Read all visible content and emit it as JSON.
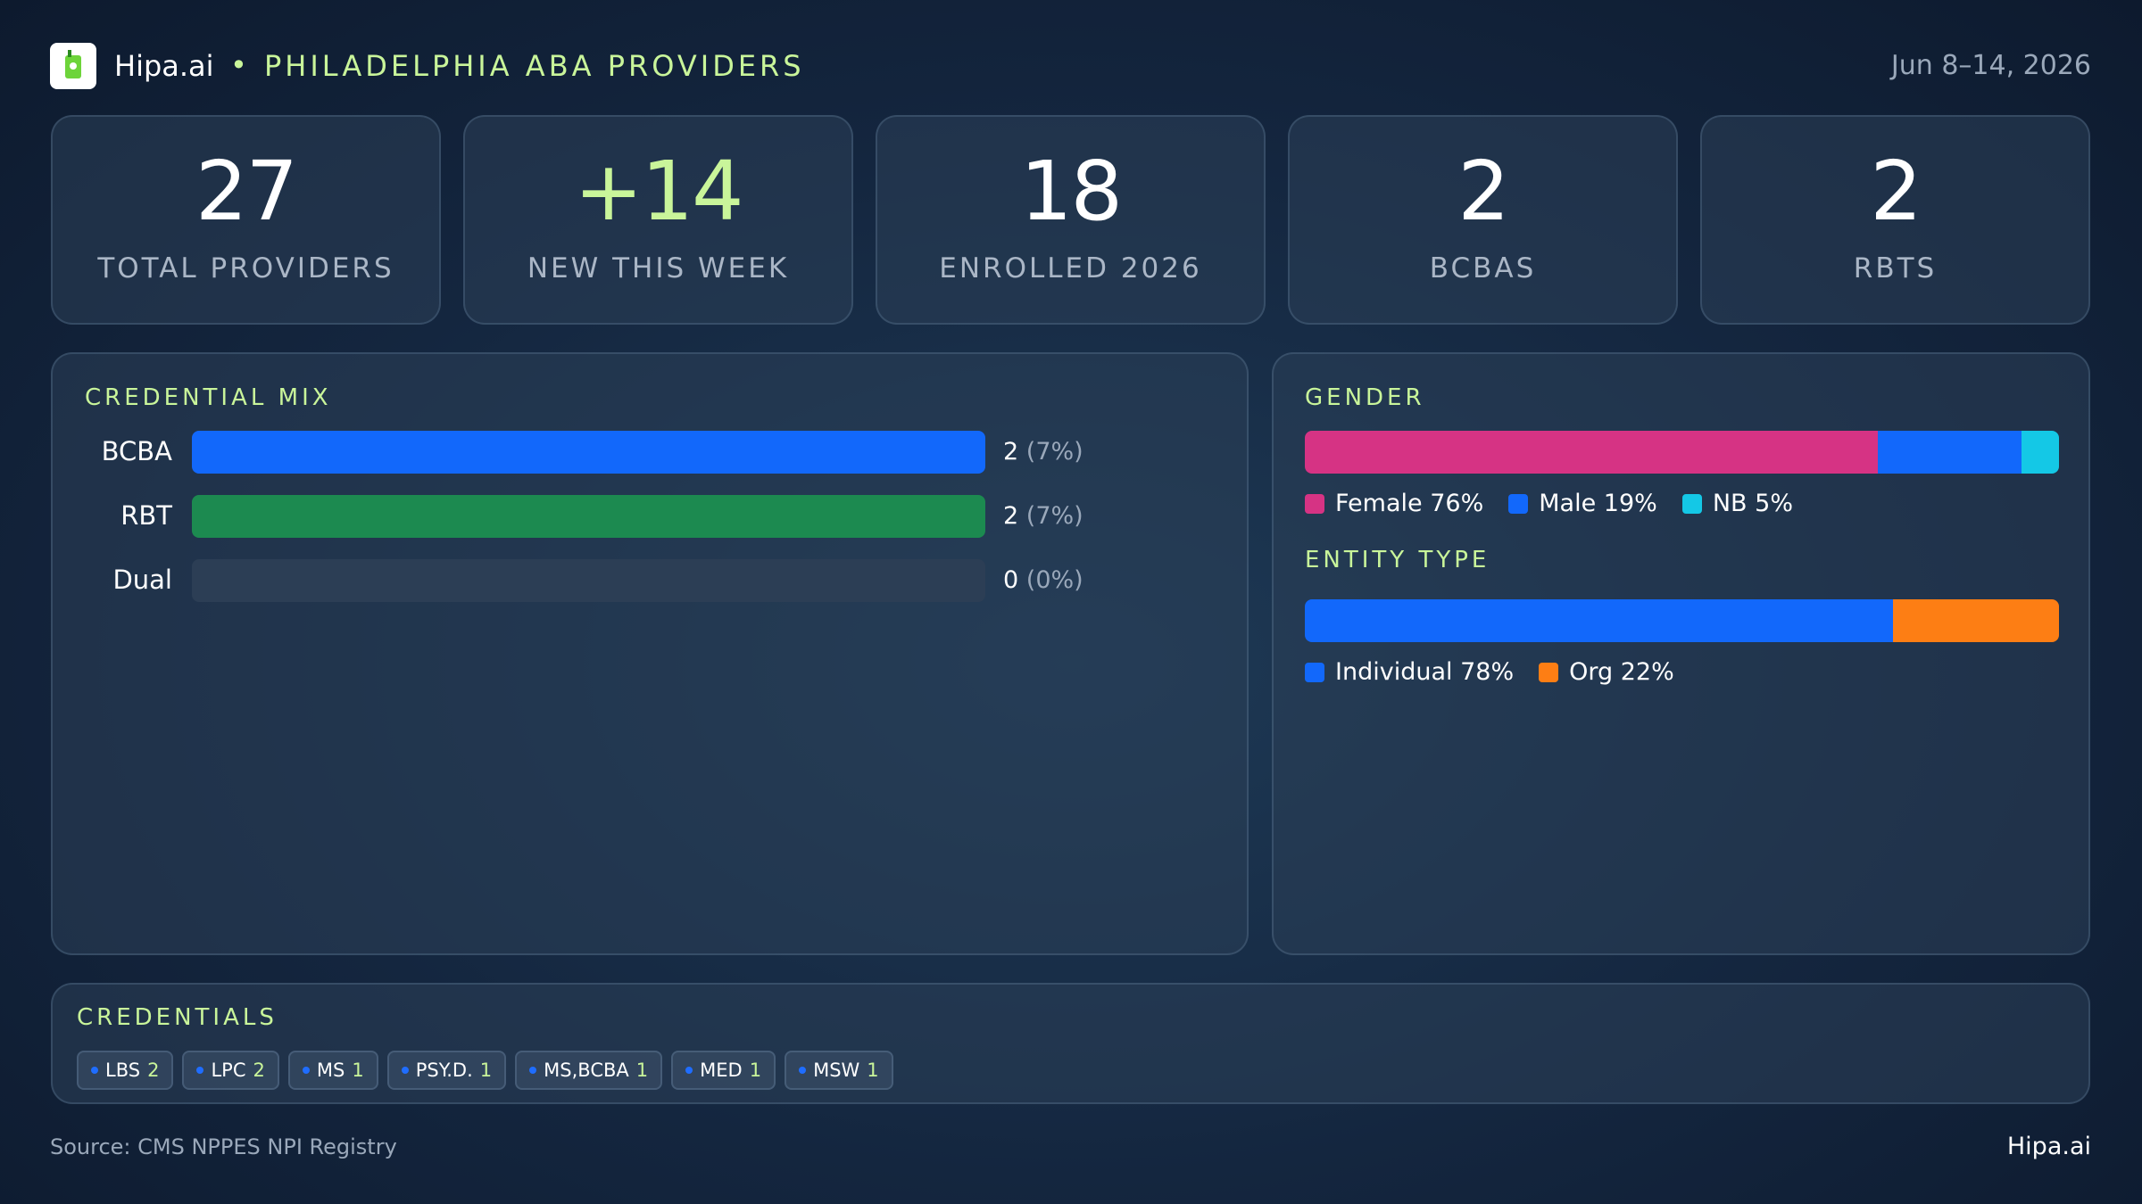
{
  "header": {
    "brand": "Hipa.ai",
    "title": "PHILADELPHIA ABA PROVIDERS",
    "date_range": "Jun 8–14, 2026"
  },
  "kpis": [
    {
      "value": 27,
      "label": "TOTAL PROVIDERS"
    },
    {
      "value": "+14",
      "label": "NEW THIS WEEK"
    },
    {
      "value": 18,
      "label": "ENROLLED 2026"
    },
    {
      "value": 2,
      "label": "BCBAS"
    },
    {
      "value": 2,
      "label": "RBTS"
    }
  ],
  "credential_mix": {
    "title": "CREDENTIAL MIX",
    "categories": [
      "BCBA",
      "RBT",
      "Dual"
    ],
    "values": [
      2,
      2,
      0
    ],
    "pct_labels": [
      "(7%)",
      "(7%)",
      "(0%)"
    ],
    "colors": [
      "#1268fb",
      "#1c8a50",
      "#1c8a50"
    ]
  },
  "gender": {
    "title": "GENDER",
    "series": [
      {
        "name": "Female",
        "color": "#d63384",
        "value": 76,
        "value_label": "76%"
      },
      {
        "name": "Male",
        "color": "#1268fb",
        "value": 19,
        "value_label": "19%"
      },
      {
        "name": "NB",
        "color": "#14c8e6",
        "value": 5,
        "value_label": "5%"
      }
    ]
  },
  "entity_type": {
    "title": "ENTITY TYPE",
    "series": [
      {
        "name": "Individual",
        "color": "#1268fb",
        "value": 78,
        "value_label": "78%"
      },
      {
        "name": "Org",
        "color": "#fd7e14",
        "value": 22,
        "value_label": "22%"
      }
    ]
  },
  "credentials": {
    "title": "CREDENTIALS",
    "items": [
      {
        "name": "LBS",
        "count": 2
      },
      {
        "name": "LPC",
        "count": 2
      },
      {
        "name": "MS",
        "count": 1
      },
      {
        "name": "PSY.D.",
        "count": 1
      },
      {
        "name": "MS,BCBA",
        "count": 1
      },
      {
        "name": "MED",
        "count": 1
      },
      {
        "name": "MSW",
        "count": 1
      }
    ]
  },
  "footer": {
    "source": "Source: CMS NPPES NPI Registry",
    "brand": "Hipa.ai"
  }
}
